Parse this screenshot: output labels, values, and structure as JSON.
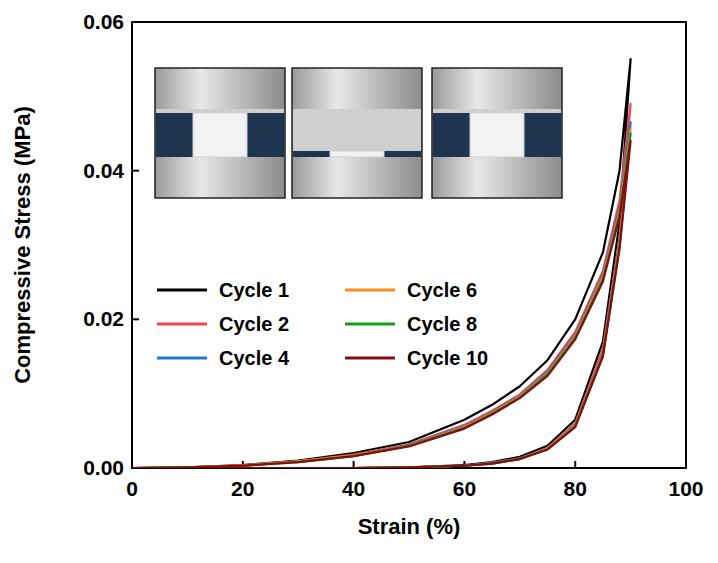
{
  "chart_data": {
    "type": "line",
    "xlabel": "Strain (%)",
    "ylabel": "Compressive Stress (MPa)",
    "xlim": [
      0,
      100
    ],
    "xticks": [
      0,
      20,
      40,
      60,
      80,
      100
    ],
    "ylim": [
      0,
      0.06
    ],
    "yticks": [
      {
        "value": 0,
        "label": "0.00"
      },
      {
        "value": 0.02,
        "label": "0.02"
      },
      {
        "value": 0.04,
        "label": "0.04"
      },
      {
        "value": 0.06,
        "label": "0.06"
      }
    ],
    "legend": "left",
    "x": [
      0,
      10,
      20,
      30,
      40,
      50,
      60,
      65,
      70,
      75,
      80,
      85,
      88,
      90,
      88,
      85,
      80,
      75,
      70,
      65,
      60,
      50,
      40,
      30,
      20,
      10,
      0
    ],
    "series": [
      {
        "name": "Cycle 1",
        "color": "#000000",
        "values": [
          0,
          0.0001,
          0.0004,
          0.001,
          0.002,
          0.0035,
          0.0065,
          0.0085,
          0.011,
          0.0145,
          0.02,
          0.029,
          0.04,
          0.055,
          0.033,
          0.017,
          0.0065,
          0.003,
          0.0015,
          0.0008,
          0.0004,
          0.0001,
          0,
          0,
          0,
          0,
          0
        ]
      },
      {
        "name": "Cycle 2",
        "color": "#f2454f",
        "values": [
          0,
          0.0001,
          0.0004,
          0.0009,
          0.0018,
          0.0032,
          0.0058,
          0.0077,
          0.0099,
          0.0132,
          0.0183,
          0.0265,
          0.036,
          0.049,
          0.031,
          0.016,
          0.006,
          0.0027,
          0.0013,
          0.0007,
          0.0003,
          0.0001,
          0,
          0,
          0,
          0,
          0
        ]
      },
      {
        "name": "Cycle 4",
        "color": "#1f78d0",
        "values": [
          0,
          0.0001,
          0.0003,
          0.0009,
          0.0017,
          0.0031,
          0.0056,
          0.0075,
          0.0097,
          0.0129,
          0.0179,
          0.026,
          0.035,
          0.0465,
          0.0305,
          0.0155,
          0.0058,
          0.0026,
          0.0013,
          0.0007,
          0.0003,
          0.0001,
          0,
          0,
          0,
          0,
          0
        ]
      },
      {
        "name": "Cycle 6",
        "color": "#ff8c1a",
        "values": [
          0,
          0.0001,
          0.0003,
          0.0009,
          0.0017,
          0.003,
          0.0055,
          0.0074,
          0.0096,
          0.0127,
          0.0177,
          0.0257,
          0.0345,
          0.0455,
          0.03,
          0.0153,
          0.0057,
          0.0026,
          0.0012,
          0.0006,
          0.0003,
          0.0001,
          0,
          0,
          0,
          0,
          0
        ]
      },
      {
        "name": "Cycle 8",
        "color": "#1a9a1a",
        "values": [
          0,
          0.0001,
          0.0003,
          0.0008,
          0.0016,
          0.003,
          0.0054,
          0.0073,
          0.0095,
          0.0126,
          0.0175,
          0.0254,
          0.0342,
          0.045,
          0.0298,
          0.0152,
          0.0056,
          0.0025,
          0.0012,
          0.0006,
          0.0003,
          0.0001,
          0,
          0,
          0,
          0,
          0
        ]
      },
      {
        "name": "Cycle 10",
        "color": "#8b0a0a",
        "values": [
          0,
          0.0001,
          0.0003,
          0.0008,
          0.0016,
          0.0029,
          0.0053,
          0.0072,
          0.0094,
          0.0124,
          0.0173,
          0.0251,
          0.0338,
          0.044,
          0.0295,
          0.015,
          0.0055,
          0.0025,
          0.0012,
          0.0006,
          0.0003,
          0.0001,
          0,
          0,
          0,
          0,
          0
        ]
      }
    ]
  }
}
